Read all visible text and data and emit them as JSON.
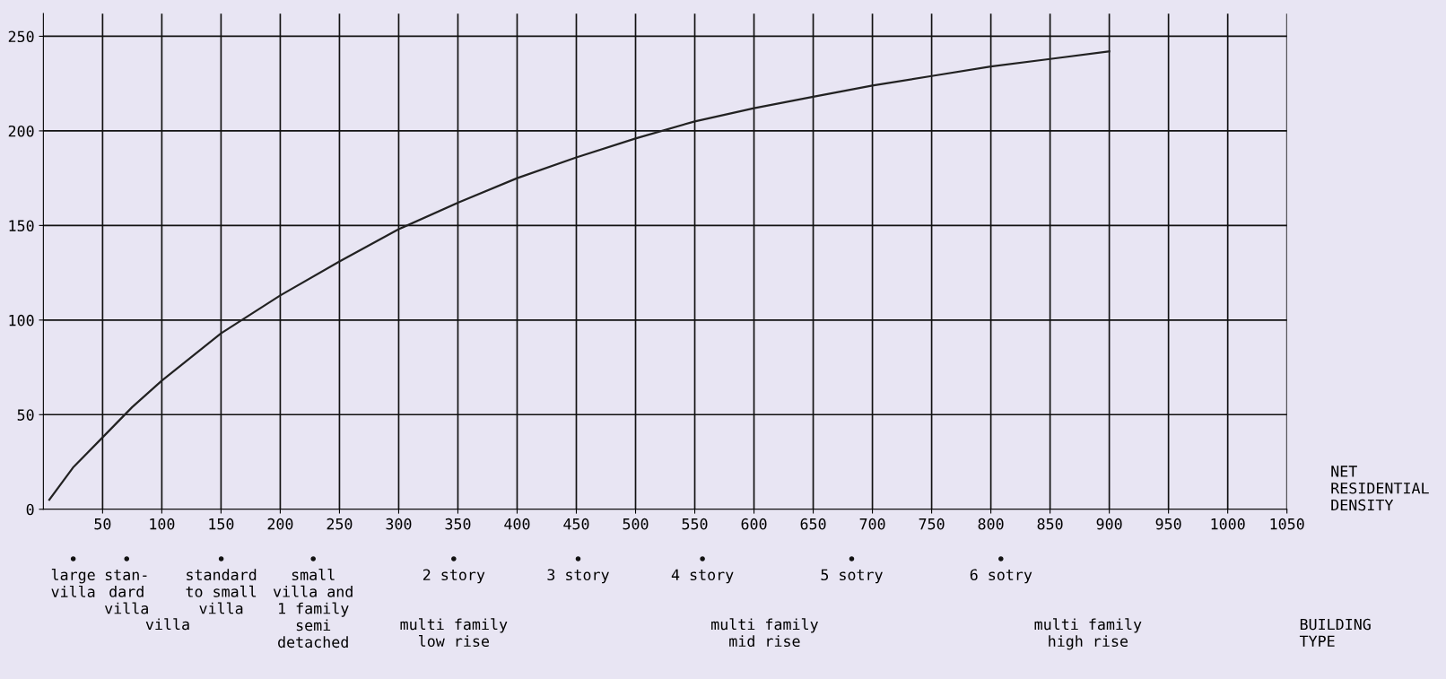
{
  "chart_data": {
    "type": "line",
    "xlabel": "NET\nRESIDENTIAL\nDENSITY",
    "x": [
      5,
      25,
      50,
      75,
      100,
      150,
      200,
      250,
      300,
      350,
      400,
      450,
      500,
      550,
      600,
      650,
      700,
      750,
      800,
      850,
      900
    ],
    "series": [
      {
        "color": "#222222",
        "values": [
          5,
          22,
          38,
          54,
          68,
          93,
          113,
          131,
          148,
          162,
          175,
          186,
          196,
          205,
          212,
          218,
          224,
          229,
          234,
          238,
          242
        ]
      }
    ],
    "xlim": [
      0,
      1050
    ],
    "ylim": [
      0,
      262
    ],
    "xticks": [
      50,
      100,
      150,
      200,
      250,
      300,
      350,
      400,
      450,
      500,
      550,
      600,
      650,
      700,
      750,
      800,
      850,
      900,
      950,
      1000,
      1050
    ],
    "yticks": [
      0,
      50,
      100,
      150,
      200,
      250
    ],
    "grid": true,
    "marker": "none",
    "line_style": "solid",
    "annotations": [
      "large\nvilla",
      "stan-\ndard\nvilla",
      "standard\nto small\nvilla",
      "small\nvilla and\n1 family\nsemi\ndetached",
      "2 story",
      "3 story",
      "4 story",
      "5 sotry",
      "6 sotry",
      "villa",
      "multi family\nlow rise",
      "multi family\nmid rise",
      "multi family\nhigh rise",
      "BUILDING\nTYPE"
    ]
  }
}
